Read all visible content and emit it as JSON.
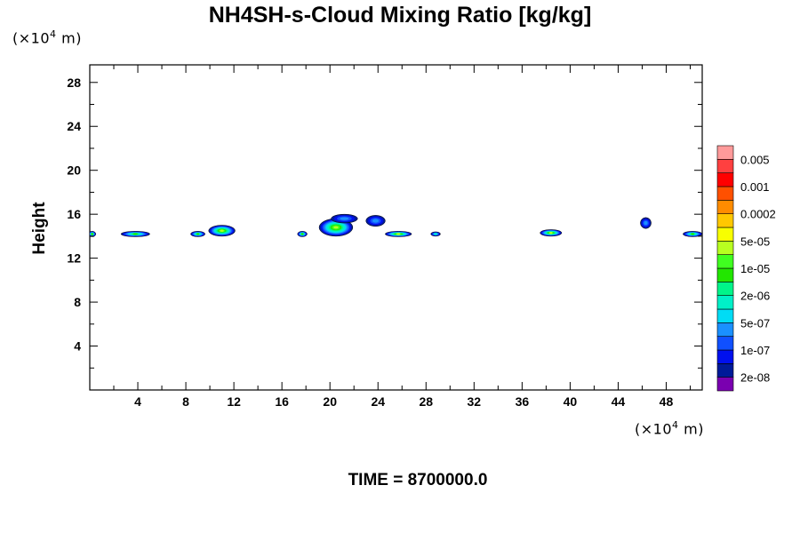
{
  "chart_data": {
    "type": "heatmap",
    "title": "NH4SH-s-Cloud Mixing Ratio [kg/kg]",
    "ylabel": "Height",
    "x_unit": {
      "prefix": "(×10",
      "exp": "4",
      "suffix": " m)"
    },
    "y_unit": {
      "prefix": "(×10",
      "exp": "4",
      "suffix": " m)"
    },
    "xlim": [
      0,
      51
    ],
    "ylim": [
      0,
      29.6
    ],
    "x_ticks": [
      4,
      8,
      12,
      16,
      20,
      24,
      28,
      32,
      36,
      40,
      44,
      48
    ],
    "y_ticks": [
      4,
      8,
      12,
      16,
      20,
      24,
      28
    ],
    "colorbar": {
      "colors": [
        "#7a00b0",
        "#001a99",
        "#0010ee",
        "#1050ff",
        "#1a90ff",
        "#00dcf5",
        "#00f0c8",
        "#00f58a",
        "#22e600",
        "#40ff20",
        "#b8ff20",
        "#f8ff00",
        "#ffc800",
        "#ff8c00",
        "#ff5000",
        "#ff0000",
        "#ff4040",
        "#ff9a9a"
      ],
      "labels": [
        "2e-08",
        "1e-07",
        "5e-07",
        "2e-06",
        "1e-05",
        "5e-05",
        "0.0002",
        "0.001",
        "0.005"
      ]
    },
    "cloud_features": [
      {
        "x_center": 0.2,
        "z_center": 14.2,
        "width": 0.6,
        "height": 0.5,
        "level": "2e-06"
      },
      {
        "x_center": 3.8,
        "z_center": 14.2,
        "width": 2.4,
        "height": 0.5,
        "level": "2e-06"
      },
      {
        "x_center": 9.0,
        "z_center": 14.2,
        "width": 1.2,
        "height": 0.5,
        "level": "2e-06"
      },
      {
        "x_center": 11.0,
        "z_center": 14.5,
        "width": 2.2,
        "height": 1.0,
        "level": "1e-05"
      },
      {
        "x_center": 17.7,
        "z_center": 14.2,
        "width": 0.8,
        "height": 0.5,
        "level": "2e-06"
      },
      {
        "x_center": 20.5,
        "z_center": 14.8,
        "width": 2.8,
        "height": 1.6,
        "level": "1e-05"
      },
      {
        "x_center": 21.2,
        "z_center": 15.6,
        "width": 2.2,
        "height": 0.8,
        "level": "1e-07"
      },
      {
        "x_center": 23.8,
        "z_center": 15.4,
        "width": 1.6,
        "height": 1.0,
        "level": "1e-07"
      },
      {
        "x_center": 25.7,
        "z_center": 14.2,
        "width": 2.2,
        "height": 0.5,
        "level": "1e-05"
      },
      {
        "x_center": 28.8,
        "z_center": 14.2,
        "width": 0.8,
        "height": 0.4,
        "level": "5e-07"
      },
      {
        "x_center": 38.4,
        "z_center": 14.3,
        "width": 1.8,
        "height": 0.6,
        "level": "1e-05"
      },
      {
        "x_center": 46.3,
        "z_center": 15.2,
        "width": 0.9,
        "height": 1.0,
        "level": "1e-07"
      },
      {
        "x_center": 50.2,
        "z_center": 14.2,
        "width": 1.6,
        "height": 0.5,
        "level": "2e-06"
      }
    ]
  },
  "time_label": "TIME = 8700000.0"
}
